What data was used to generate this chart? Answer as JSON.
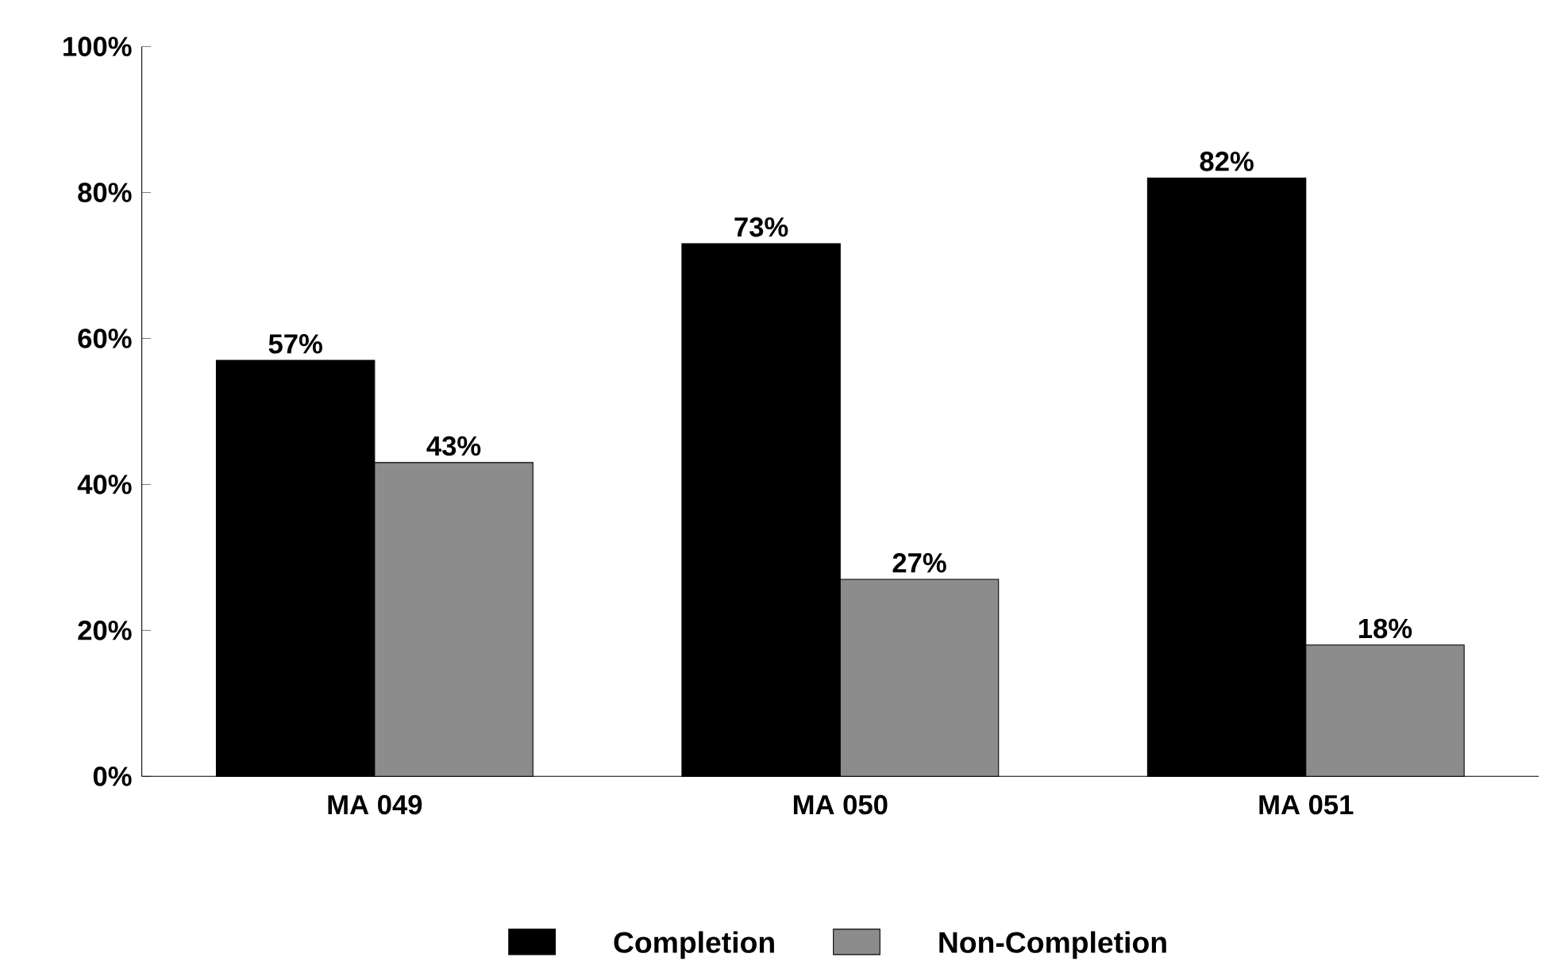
{
  "chart_data": {
    "type": "bar",
    "categories": [
      "MA 049",
      "MA 050",
      "MA 051"
    ],
    "series": [
      {
        "name": "Completion",
        "color": "#000000",
        "values": [
          57,
          73,
          82
        ],
        "value_labels": [
          "57%",
          "73%",
          "82%"
        ]
      },
      {
        "name": "Non-Completion",
        "color": "#8c8c8c",
        "values": [
          43,
          27,
          18
        ],
        "value_labels": [
          "43%",
          "27%",
          "18%"
        ]
      }
    ],
    "ylim": [
      0,
      100
    ],
    "yticks": [
      {
        "value": 0,
        "label": "0%"
      },
      {
        "value": 20,
        "label": "20%"
      },
      {
        "value": 40,
        "label": "40%"
      },
      {
        "value": 60,
        "label": "60%"
      },
      {
        "value": 80,
        "label": "80%"
      },
      {
        "value": 100,
        "label": "100%"
      }
    ],
    "legend": "bottom"
  }
}
